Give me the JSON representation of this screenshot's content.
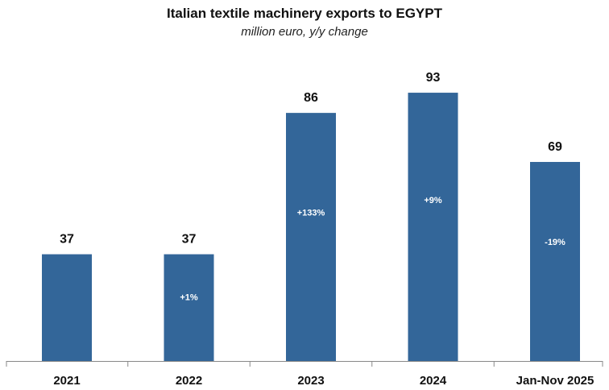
{
  "chart_data": {
    "type": "bar",
    "title": "Italian textile machinery exports to EGYPT",
    "subtitle": "million euro, y/y change",
    "categories": [
      "2021",
      "2022",
      "2023",
      "2024",
      "Jan-Nov 2025"
    ],
    "values": [
      37,
      37,
      86,
      93,
      69
    ],
    "value_labels": [
      "37",
      "37",
      "86",
      "93",
      "69"
    ],
    "change_labels": [
      "",
      "+1%",
      "+133%",
      "+9%",
      "-19%"
    ],
    "ylim": [
      0,
      100
    ],
    "grid": false,
    "legend": "none",
    "colors": {
      "bar": "#336699",
      "axis": "#888888"
    }
  }
}
